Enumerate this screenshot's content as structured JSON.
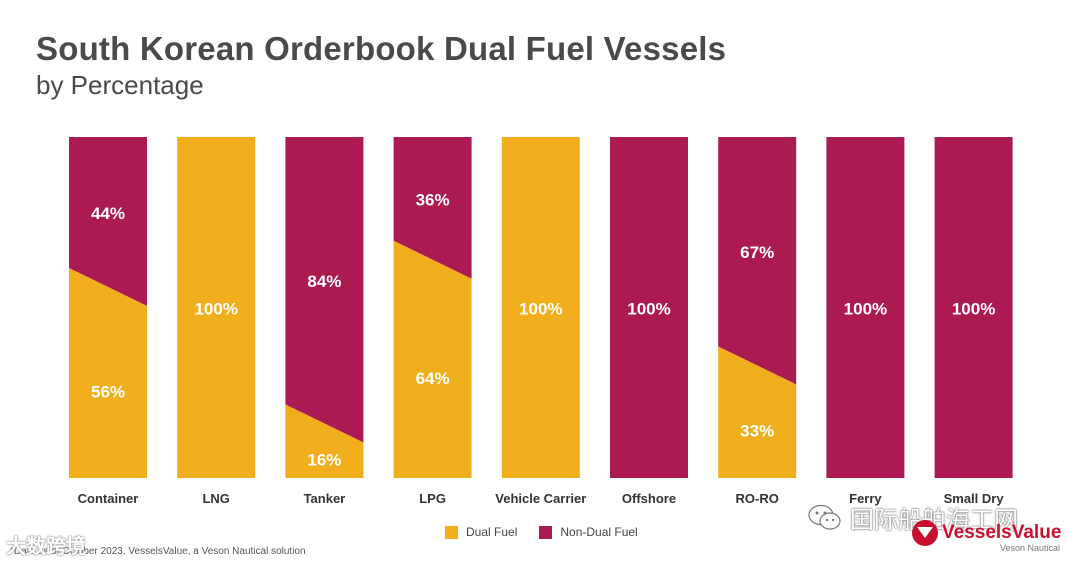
{
  "header": {
    "title": "South Korean Orderbook Dual Fuel Vessels",
    "subtitle": "by Percentage"
  },
  "colors": {
    "dual_fuel": "#f0ae1c",
    "non_dual_fuel": "#ab1a52",
    "label_text": "#ffffff",
    "category_text": "#333333"
  },
  "chart_data": {
    "type": "bar",
    "stacked": true,
    "categories": [
      "Container",
      "LNG",
      "Tanker",
      "LPG",
      "Vehicle Carrier",
      "Offshore",
      "RO-RO",
      "Ferry",
      "Small Dry"
    ],
    "series": [
      {
        "name": "Dual Fuel",
        "values": [
          56,
          100,
          16,
          64,
          100,
          0,
          33,
          0,
          0
        ]
      },
      {
        "name": "Non-Dual Fuel",
        "values": [
          44,
          0,
          84,
          36,
          0,
          100,
          67,
          100,
          100
        ]
      }
    ],
    "data_labels": {
      "Dual Fuel": [
        "56%",
        "100%",
        "16%",
        "64%",
        "100%",
        "",
        "33%",
        "",
        ""
      ],
      "Non-Dual Fuel": [
        "44%",
        "",
        "84%",
        "36%",
        "",
        "100%",
        "67%",
        "100%",
        "100%"
      ]
    },
    "ylim": [
      0,
      100
    ],
    "grid": false,
    "legend_position": "bottom-center"
  },
  "legend": {
    "dual_fuel_label": "Dual Fuel",
    "non_dual_fuel_label": "Non-Dual Fuel"
  },
  "footnote": "*Data as of October 2023. VesselsValue, a Veson Nautical solution",
  "watermarks": {
    "left": "大数跨境",
    "right": "国际船舶海工网"
  },
  "logo": {
    "name": "VesselsValue",
    "sub": "Veson Nautical"
  }
}
